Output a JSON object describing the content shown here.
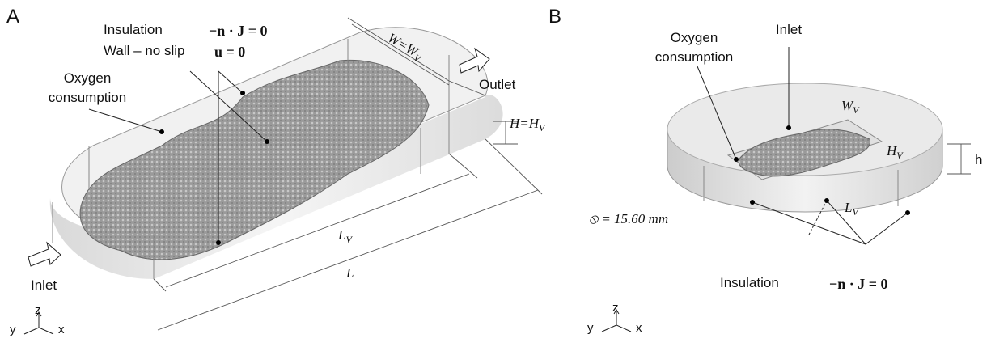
{
  "panel_a": {
    "letter": "A",
    "insulation": "Insulation",
    "insulation_eq": "−n · J = 0",
    "wall": "Wall – no slip",
    "wall_eq": "u = 0",
    "oxygen": [
      "Oxygen",
      "consumption"
    ],
    "outlet": "Outlet",
    "inlet": "Inlet",
    "width": {
      "text": "W=W",
      "sub": "V"
    },
    "height": {
      "text": "H=H",
      "sub": "V"
    },
    "length_v": {
      "text": "L",
      "sub": "V"
    },
    "length": "L",
    "axes": {
      "z": "z",
      "y": "y",
      "x": "x"
    }
  },
  "panel_b": {
    "letter": "B",
    "oxygen": [
      "Oxygen",
      "consumption"
    ],
    "inlet": "Inlet",
    "width": {
      "text": "W",
      "sub": "V"
    },
    "height": {
      "text": "H",
      "sub": "V"
    },
    "length_v": {
      "text": "L",
      "sub": "V"
    },
    "h": "h",
    "diameter": "⦸ = 15.60 mm",
    "insulation": "Insulation",
    "insulation_eq": "−n · J = 0",
    "axes": {
      "z": "z",
      "y": "y",
      "x": "x"
    }
  }
}
